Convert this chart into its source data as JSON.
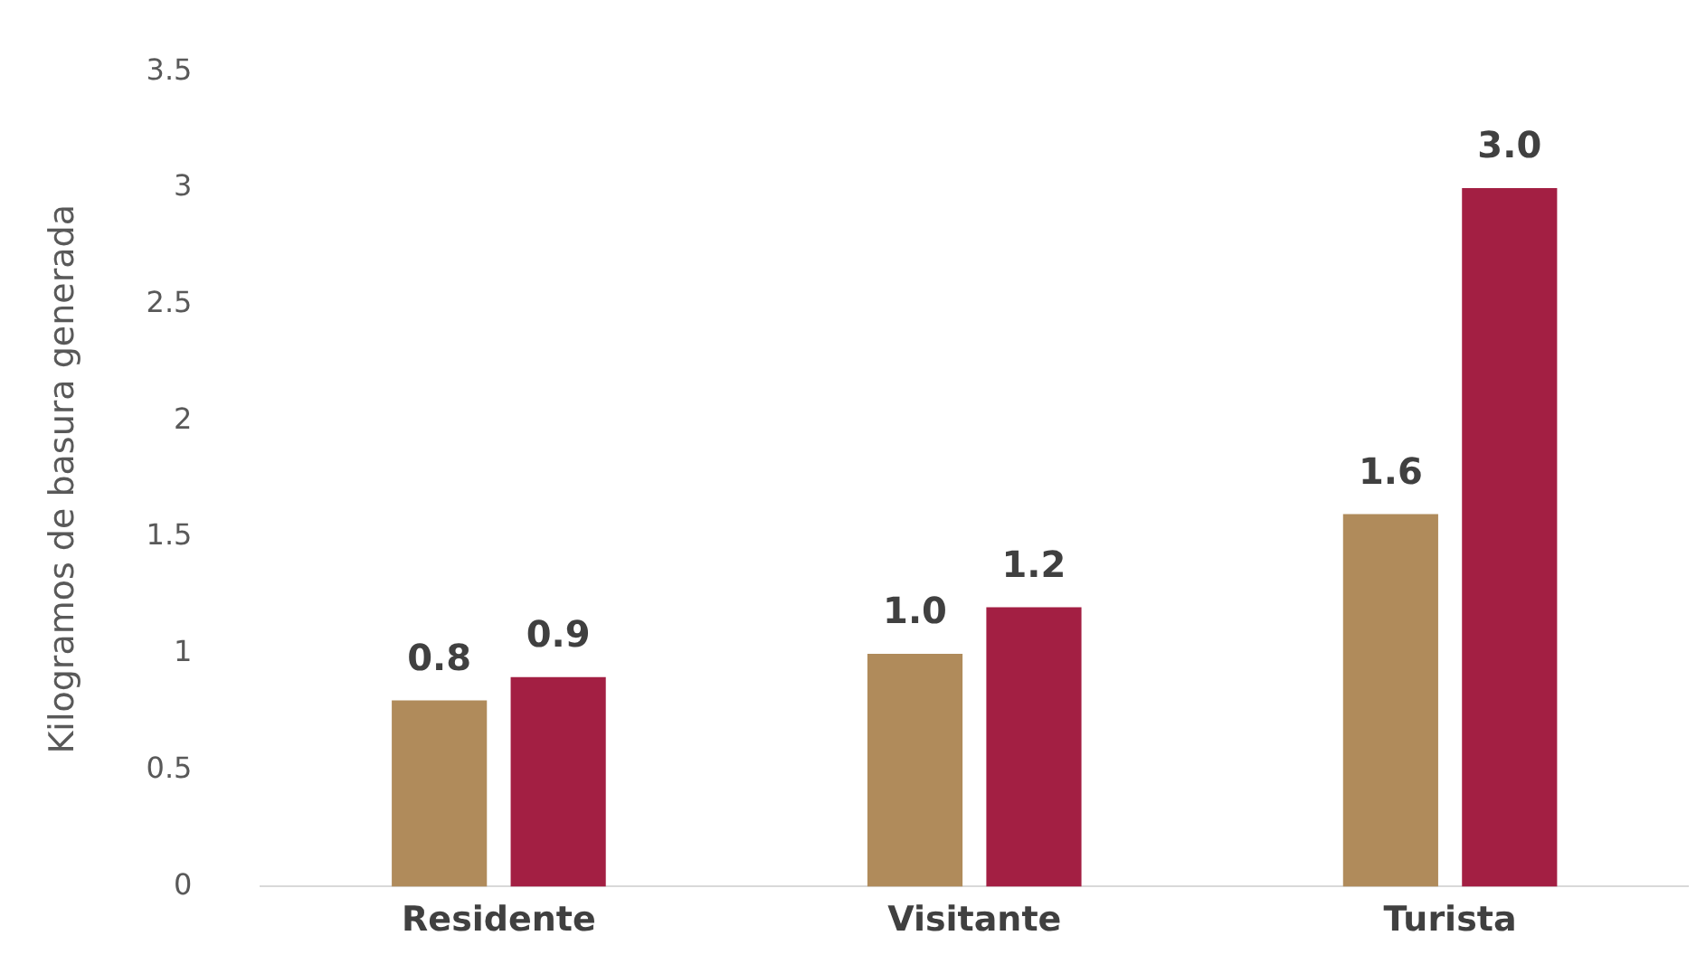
{
  "chart_data": {
    "type": "bar",
    "ylabel": "Kilogramos de basura generada",
    "categories": [
      "Residente",
      "Visitante",
      "Turista"
    ],
    "series": [
      {
        "color": "#b08b5b",
        "values": [
          0.8,
          1.0,
          1.6
        ],
        "value_labels": [
          "0.8",
          "1.0",
          "1.6"
        ]
      },
      {
        "color": "#a31f43",
        "values": [
          0.9,
          1.2,
          3.0
        ],
        "value_labels": [
          "0.9",
          "1.2",
          "3.0"
        ]
      }
    ],
    "ylim": [
      0,
      3.5
    ],
    "yticks": [
      0,
      0.5,
      1,
      1.5,
      2,
      2.5,
      3,
      3.5
    ],
    "grid": false,
    "legend": false
  }
}
